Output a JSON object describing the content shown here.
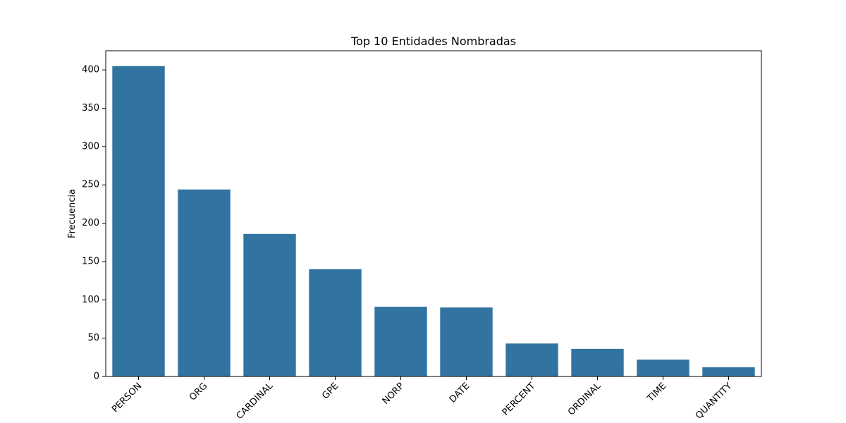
{
  "chart_data": {
    "type": "bar",
    "title": "Top 10 Entidades Nombradas",
    "xlabel": "",
    "ylabel": "Frecuencia",
    "categories": [
      "PERSON",
      "ORG",
      "CARDINAL",
      "GPE",
      "NORP",
      "DATE",
      "PERCENT",
      "ORDINAL",
      "TIME",
      "QUANTITY"
    ],
    "values": [
      405,
      244,
      186,
      140,
      91,
      90,
      43,
      36,
      22,
      12
    ],
    "ylim": [
      0,
      425
    ],
    "yticks": [
      0,
      50,
      100,
      150,
      200,
      250,
      300,
      350,
      400
    ],
    "bar_color": "#3274a1",
    "grid": false,
    "x_tick_rotation_deg": 45
  }
}
